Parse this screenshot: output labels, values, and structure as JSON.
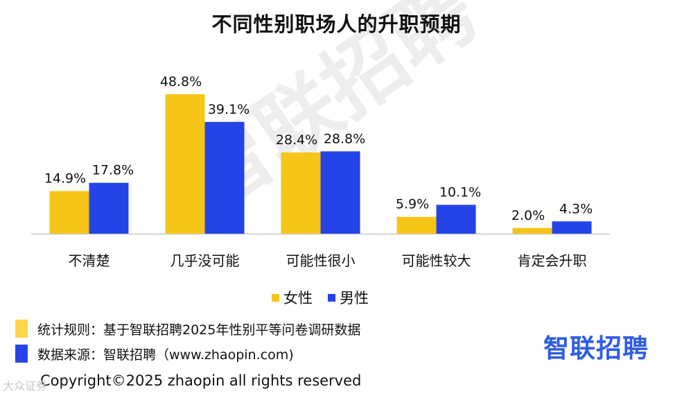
{
  "chart_data": {
    "type": "bar",
    "title": "不同性别职场人的升职预期",
    "categories": [
      "不清楚",
      "几乎没可能",
      "可能性很小",
      "可能性较大",
      "肯定会升职"
    ],
    "series": [
      {
        "name": "女性",
        "color": "#f5c518",
        "values": [
          14.9,
          48.8,
          28.4,
          5.9,
          2.0
        ],
        "labels": [
          "14.9%",
          "48.8%",
          "28.4%",
          "5.9%",
          "2.0%"
        ]
      },
      {
        "name": "男性",
        "color": "#2544e8",
        "values": [
          17.8,
          39.1,
          28.8,
          10.1,
          4.3
        ],
        "labels": [
          "17.8%",
          "39.1%",
          "28.8%",
          "10.1%",
          "4.3%"
        ]
      }
    ],
    "ylim": [
      0,
      50
    ],
    "grid": false,
    "legend": "bottom"
  },
  "notes": {
    "rule": "统计规则：基于智联招聘2025年性别平等问卷调研数据",
    "source": "数据来源：智联招聘（www.zhaopin.com)"
  },
  "brand": "智联招聘",
  "watermark": "智联招聘",
  "copyright": "Copyright©2025 zhaopin all rights reserved",
  "corner_mark": "大众证券"
}
